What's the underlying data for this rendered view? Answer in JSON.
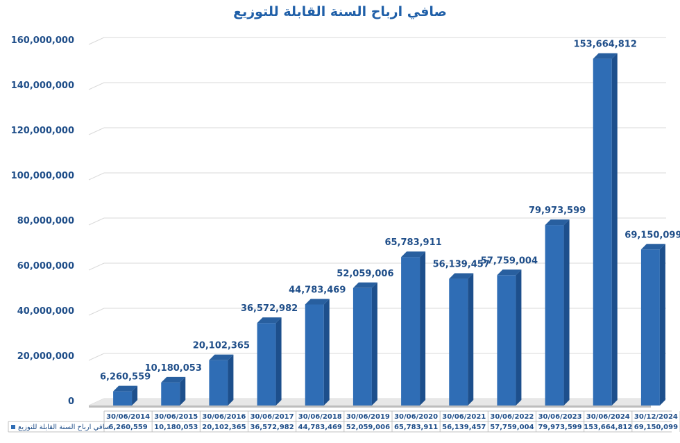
{
  "chart_data": {
    "type": "bar",
    "title": "صافي ارباح السنة القابلة للتوزيع",
    "categories": [
      "30/06/2014",
      "30/06/2015",
      "30/06/2016",
      "30/06/2017",
      "30/06/2018",
      "30/06/2019",
      "30/06/2020",
      "30/06/2021",
      "30/06/2022",
      "30/06/2023",
      "30/06/2024",
      "30/12/2024"
    ],
    "series": [
      {
        "name": "صافي ارباح السنة القابلة للتوزيع",
        "values": [
          6260559,
          10180053,
          20102365,
          36572982,
          44783469,
          52059006,
          65783911,
          56139457,
          57759004,
          79973599,
          153664812,
          69150099
        ],
        "labels": [
          "6,260,559",
          "10,180,053",
          "20,102,365",
          "36,572,982",
          "44,783,469",
          "52,059,006",
          "65,783,911",
          "56,139,457",
          "57,759,004",
          "79,973,599",
          "153,664,812",
          "69,150,099"
        ]
      }
    ],
    "ylim": [
      0,
      160000000
    ],
    "yticks": [
      0,
      20000000,
      40000000,
      60000000,
      80000000,
      100000000,
      120000000,
      140000000,
      160000000
    ],
    "ytick_labels": [
      "0",
      "20,000,000",
      "40,000,000",
      "60,000,000",
      "80,000,000",
      "100,000,000",
      "120,000,000",
      "140,000,000",
      "160,000,000"
    ],
    "grid": true,
    "data_table": true,
    "colors": {
      "bar_front": "#2f6db5",
      "bar_side": "#1d4f8c",
      "bar_top": "#285f9f",
      "text": "#1f4e89",
      "grid": "#d9d9d9"
    }
  }
}
